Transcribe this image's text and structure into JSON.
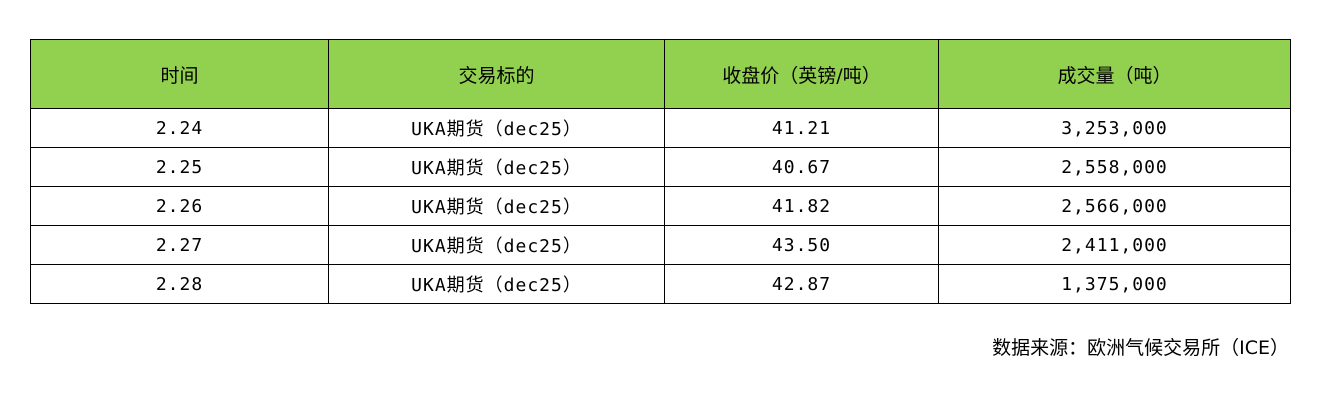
{
  "table": {
    "headers": [
      "时间",
      "交易标的",
      "收盘价（英镑/吨）",
      "成交量（吨）"
    ],
    "rows": [
      [
        "2.24",
        "UKA期货（dec25）",
        "41.21",
        "3,253,000"
      ],
      [
        "2.25",
        "UKA期货（dec25）",
        "40.67",
        "2,558,000"
      ],
      [
        "2.26",
        "UKA期货（dec25）",
        "41.82",
        "2,566,000"
      ],
      [
        "2.27",
        "UKA期货（dec25）",
        "43.50",
        "2,411,000"
      ],
      [
        "2.28",
        "UKA期货（dec25）",
        "42.87",
        "1,375,000"
      ]
    ],
    "header_color": "#92D050"
  },
  "source": "数据来源：欧洲气候交易所（ICE）"
}
